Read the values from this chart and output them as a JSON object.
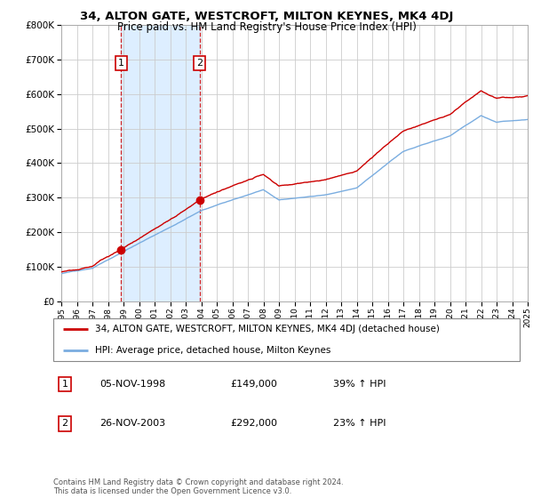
{
  "title": "34, ALTON GATE, WESTCROFT, MILTON KEYNES, MK4 4DJ",
  "subtitle": "Price paid vs. HM Land Registry's House Price Index (HPI)",
  "ylim": [
    0,
    800000
  ],
  "yticks": [
    0,
    100000,
    200000,
    300000,
    400000,
    500000,
    600000,
    700000,
    800000
  ],
  "xmin_year": 1995,
  "xmax_year": 2025,
  "xticks": [
    1995,
    1996,
    1997,
    1998,
    1999,
    2000,
    2001,
    2002,
    2003,
    2004,
    2005,
    2006,
    2007,
    2008,
    2009,
    2010,
    2011,
    2012,
    2013,
    2014,
    2015,
    2016,
    2017,
    2018,
    2019,
    2020,
    2021,
    2022,
    2023,
    2024,
    2025
  ],
  "purchase1_date": 1998.85,
  "purchase1_price": 149000,
  "purchase2_date": 2003.9,
  "purchase2_price": 292000,
  "legend_line1": "34, ALTON GATE, WESTCROFT, MILTON KEYNES, MK4 4DJ (detached house)",
  "legend_line2": "HPI: Average price, detached house, Milton Keynes",
  "annotation1_label": "1",
  "annotation1_date": "05-NOV-1998",
  "annotation1_price": "£149,000",
  "annotation1_hpi": "39% ↑ HPI",
  "annotation2_label": "2",
  "annotation2_date": "26-NOV-2003",
  "annotation2_price": "£292,000",
  "annotation2_hpi": "23% ↑ HPI",
  "footer": "Contains HM Land Registry data © Crown copyright and database right 2024.\nThis data is licensed under the Open Government Licence v3.0.",
  "red_color": "#cc0000",
  "blue_color": "#7aade0",
  "shaded_color": "#ddeeff",
  "grid_color": "#cccccc",
  "background_color": "#ffffff"
}
